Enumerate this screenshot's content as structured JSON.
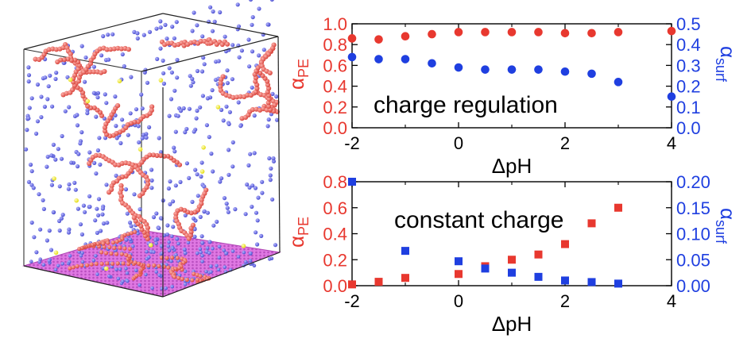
{
  "colors": {
    "pe": "#e8382f",
    "surf": "#1f3fe0",
    "axis": "#000000",
    "bead_red": "#e5605a",
    "bead_blue": "#5d5fd9",
    "bead_yellow": "#f4f02c",
    "surface": "#e37be5"
  },
  "chart_data": [
    {
      "type": "scatter",
      "annotation": "charge regulation",
      "xlabel": "ΔpH",
      "ylabel_left": "α",
      "ylabel_left_sub": "PE",
      "ylabel_right": "α",
      "ylabel_right_sub": "surf",
      "xlim": [
        -2,
        4
      ],
      "ylim_left": [
        0,
        1.0
      ],
      "ylim_right": [
        0,
        0.5
      ],
      "xticks": [
        "-2",
        "0",
        "2",
        "4"
      ],
      "yticks_left": [
        "0.0",
        "0.2",
        "0.4",
        "0.6",
        "0.8",
        "1.0"
      ],
      "yticks_right": [
        "0.0",
        "0.1",
        "0.2",
        "0.3",
        "0.4",
        "0.5"
      ],
      "grid": false,
      "series": [
        {
          "axis": "left",
          "marker": "circle",
          "x": [
            -2,
            -1.5,
            -1,
            -0.5,
            0,
            0.5,
            1,
            1.5,
            2,
            2.5,
            3,
            4
          ],
          "y": [
            0.86,
            0.85,
            0.88,
            0.9,
            0.92,
            0.92,
            0.92,
            0.92,
            0.91,
            0.91,
            0.92,
            0.93
          ]
        },
        {
          "axis": "right",
          "marker": "circle",
          "x": [
            -2,
            -1.5,
            -1,
            -0.5,
            0,
            0.5,
            1,
            1.5,
            2,
            2.5,
            3,
            4
          ],
          "y": [
            0.34,
            0.33,
            0.33,
            0.31,
            0.29,
            0.28,
            0.28,
            0.28,
            0.27,
            0.26,
            0.22,
            0.15
          ]
        }
      ]
    },
    {
      "type": "scatter",
      "annotation": "constant charge",
      "xlabel": "ΔpH",
      "ylabel_left": "α",
      "ylabel_left_sub": "PE",
      "ylabel_right": "α",
      "ylabel_right_sub": "surf",
      "xlim": [
        -2,
        4
      ],
      "ylim_left": [
        0,
        0.8
      ],
      "ylim_right": [
        0,
        0.2
      ],
      "xticks": [
        "-2",
        "0",
        "2",
        "4"
      ],
      "yticks_left": [
        "0.0",
        "0.2",
        "0.4",
        "0.6",
        "0.8"
      ],
      "yticks_right": [
        "0.00",
        "0.05",
        "0.10",
        "0.15",
        "0.20"
      ],
      "grid": false,
      "series": [
        {
          "axis": "left",
          "marker": "square",
          "x": [
            -2,
            -1.5,
            -1,
            0,
            0.5,
            1,
            1.5,
            2,
            2.5,
            3
          ],
          "y": [
            0.01,
            0.03,
            0.06,
            0.09,
            0.15,
            0.2,
            0.24,
            0.32,
            0.48,
            0.6
          ]
        },
        {
          "axis": "right",
          "marker": "square",
          "x": [
            -2,
            -1,
            0,
            0.5,
            1,
            1.5,
            2,
            2.5,
            3
          ],
          "y": [
            0.2,
            0.067,
            0.047,
            0.033,
            0.025,
            0.017,
            0.01,
            0.007,
            0.004
          ]
        }
      ]
    }
  ]
}
